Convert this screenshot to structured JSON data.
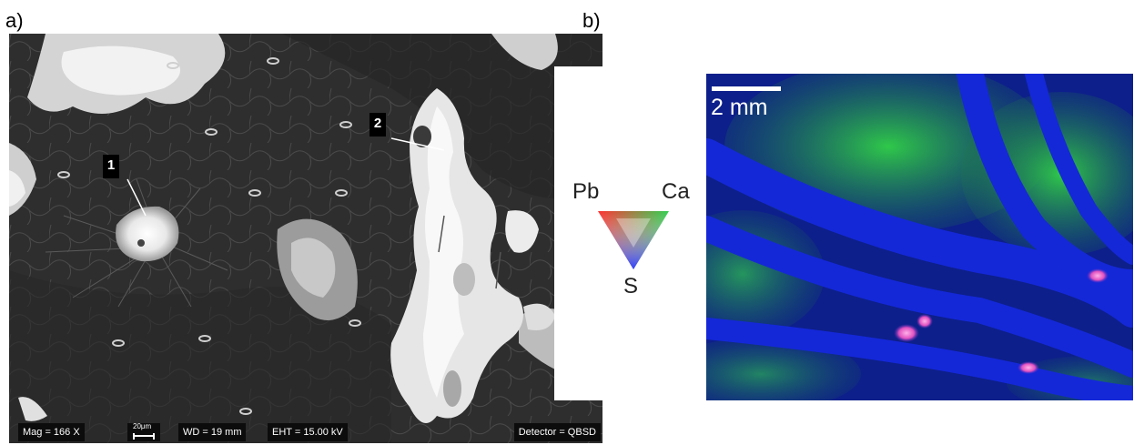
{
  "panels": {
    "a": {
      "label": "a)",
      "markers": [
        "1",
        "2"
      ],
      "infobar": {
        "mag": "Mag =   166 X",
        "scale_text": "20μm",
        "wd": "WD =   19 mm",
        "eht": "EHT = 15.00 kV",
        "detector": "Detector = QBSD"
      }
    },
    "b": {
      "label": "b)",
      "legend": {
        "top_left": "Pb",
        "top_right": "Ca",
        "bottom": "S"
      },
      "scale_bar_label": "2 mm",
      "colors": {
        "Pb": "#ff3030",
        "Ca": "#30d050",
        "S": "#3040ff"
      }
    }
  }
}
